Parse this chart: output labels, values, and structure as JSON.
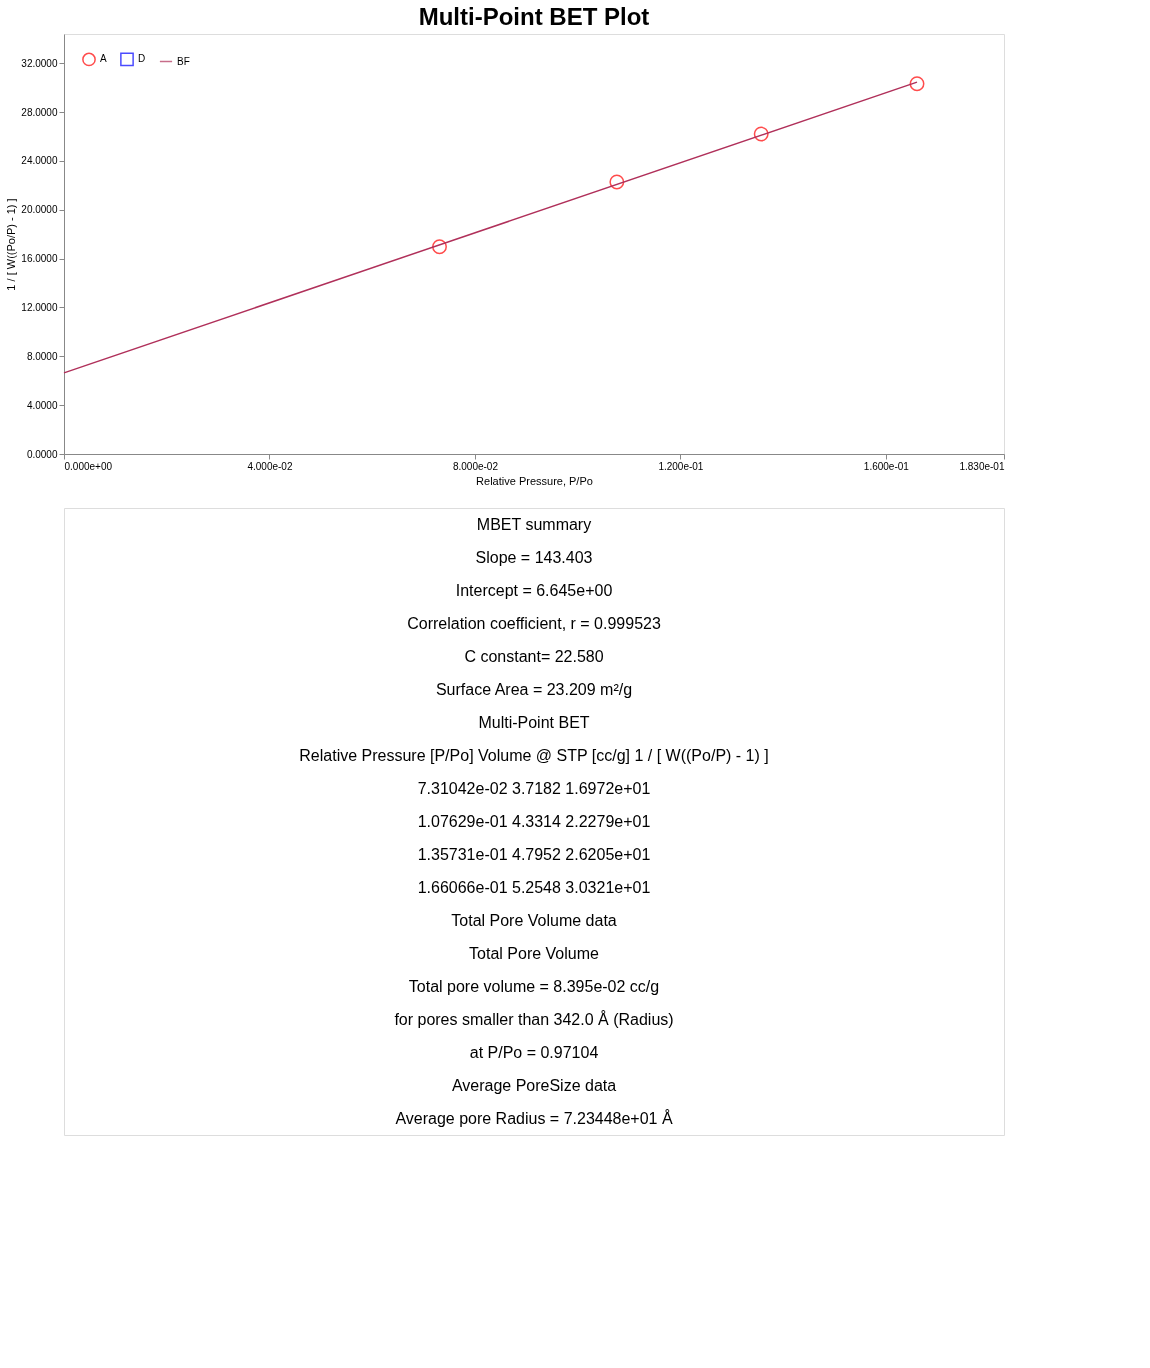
{
  "chart_data": {
    "type": "scatter",
    "title": "Multi-Point BET Plot",
    "xlabel": "Relative Pressure, P/Po",
    "ylabel": "1 / [ W((Po/P) - 1) ]",
    "xlim": [
      0,
      0.183
    ],
    "ylim": [
      0,
      34.4
    ],
    "xticks": [
      {
        "value": 0,
        "label": "0.000e+00"
      },
      {
        "value": 0.04,
        "label": "4.000e-02"
      },
      {
        "value": 0.08,
        "label": "8.000e-02"
      },
      {
        "value": 0.12,
        "label": "1.200e-01"
      },
      {
        "value": 0.16,
        "label": "1.600e-01"
      },
      {
        "value": 0.183,
        "label": "1.830e-01"
      }
    ],
    "yticks": [
      {
        "value": 0,
        "label": "0.0000"
      },
      {
        "value": 4,
        "label": "4.0000"
      },
      {
        "value": 8,
        "label": "8.0000"
      },
      {
        "value": 12,
        "label": "12.0000"
      },
      {
        "value": 16,
        "label": "16.0000"
      },
      {
        "value": 20,
        "label": "20.0000"
      },
      {
        "value": 24,
        "label": "24.0000"
      },
      {
        "value": 28,
        "label": "28.0000"
      },
      {
        "value": 32,
        "label": "32.0000"
      }
    ],
    "grid": false,
    "legend": "top left",
    "series": [
      {
        "name": "A",
        "marker": "circle",
        "color": "#ff0000",
        "x": [
          0.0731042,
          0.107629,
          0.135731,
          0.166066
        ],
        "values": [
          16.972,
          22.279,
          26.205,
          30.321
        ]
      },
      {
        "name": "D",
        "marker": "square",
        "color": "#0000ff"
      },
      {
        "name": "BF",
        "type": "line",
        "color": "#b0305a",
        "x": [
          0,
          0.166066
        ],
        "values": [
          6.645,
          30.46
        ]
      }
    ],
    "annotations": [
      "MBET summary",
      "Slope = 143.403",
      "Intercept = 6.645e+00",
      "Correlation coefficient, r = 0.999523",
      "C constant= 22.580",
      "Surface Area = 23.209 m²/g",
      "Multi-Point BET",
      "Relative Pressure [P/Po]    Volume @ STP [cc/g]    1 / [ W((Po/P) - 1) ]",
      "7.31042e-02    3.7182    1.6972e+01",
      "1.07629e-01    4.3314    2.2279e+01",
      "1.35731e-01    4.7952    2.6205e+01",
      "1.66066e-01    5.2548    3.0321e+01",
      "Total Pore Volume data",
      "Total Pore Volume",
      "Total pore volume = 8.395e-02 cc/g",
      "for pores smaller than 342.0 Å (Radius)",
      "at P/Po = 0.97104",
      "Average PoreSize data",
      "Average pore Radius = 7.23448e+01 Å"
    ]
  }
}
